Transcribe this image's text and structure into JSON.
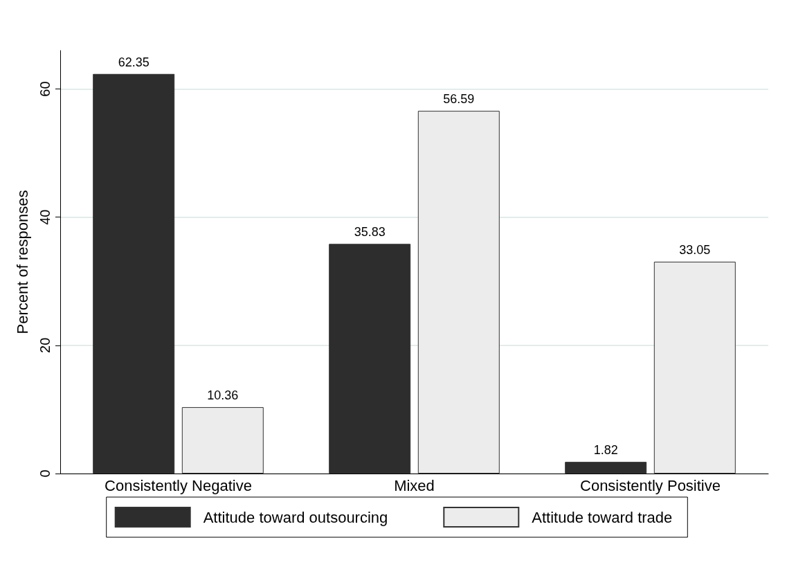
{
  "chart_data": {
    "type": "bar",
    "ylabel": "Percent of responses",
    "categories": [
      "Consistently Negative",
      "Mixed",
      "Consistently Positive"
    ],
    "series": [
      {
        "name": "Attitude toward outsourcing",
        "color": "#2d2d2d",
        "values": [
          62.35,
          35.83,
          1.82
        ]
      },
      {
        "name": "Attitude toward trade",
        "color": "#ececec",
        "values": [
          10.36,
          56.59,
          33.05
        ]
      }
    ],
    "ylim": [
      0,
      66
    ],
    "yticks": [
      0,
      20,
      40,
      60
    ],
    "grid": "y",
    "legend": "bottom",
    "data_labels": true
  }
}
